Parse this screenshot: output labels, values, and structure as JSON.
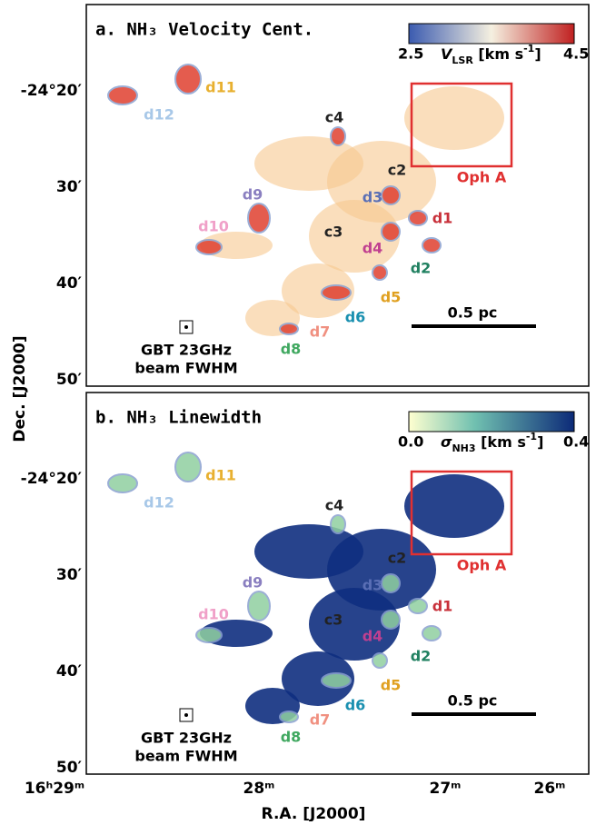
{
  "panels": [
    {
      "title": "a. NH₃ Velocity Cent.",
      "colorbar": {
        "min": "2.5",
        "max": "4.5",
        "label": [
          "V",
          "LSR",
          " [km s",
          "-1",
          "]"
        ]
      },
      "labels": [
        "d11",
        "d12",
        "c4",
        "c2",
        "d3",
        "d9",
        "d1",
        "d10",
        "c3",
        "d4",
        "d2",
        "d5",
        "d6",
        "d7",
        "d8",
        "Oph A",
        "0.5 pc",
        "GBT 23GHz",
        "beam FWHM"
      ]
    },
    {
      "title": "b. NH₃ Linewidth",
      "colorbar": {
        "min": "0.0",
        "max": "0.4",
        "label": [
          "σ",
          "NH3",
          " [km s",
          "-1",
          "]"
        ]
      },
      "labels": [
        "d11",
        "d12",
        "c4",
        "c2",
        "d3",
        "d9",
        "d1",
        "d10",
        "c3",
        "d4",
        "d2",
        "d5",
        "d6",
        "d7",
        "d8",
        "Oph A",
        "0.5 pc",
        "GBT 23GHz",
        "beam FWHM"
      ]
    }
  ],
  "y_axis": {
    "title": "Dec. [J2000]",
    "ticks": [
      "-24°20′",
      "30′",
      "40′",
      "50′"
    ]
  },
  "x_axis": {
    "title": "R.A. [J2000]",
    "ticks": [
      "16ʰ29ᵐ",
      "28ᵐ",
      "27ᵐ",
      "26ᵐ"
    ]
  }
}
